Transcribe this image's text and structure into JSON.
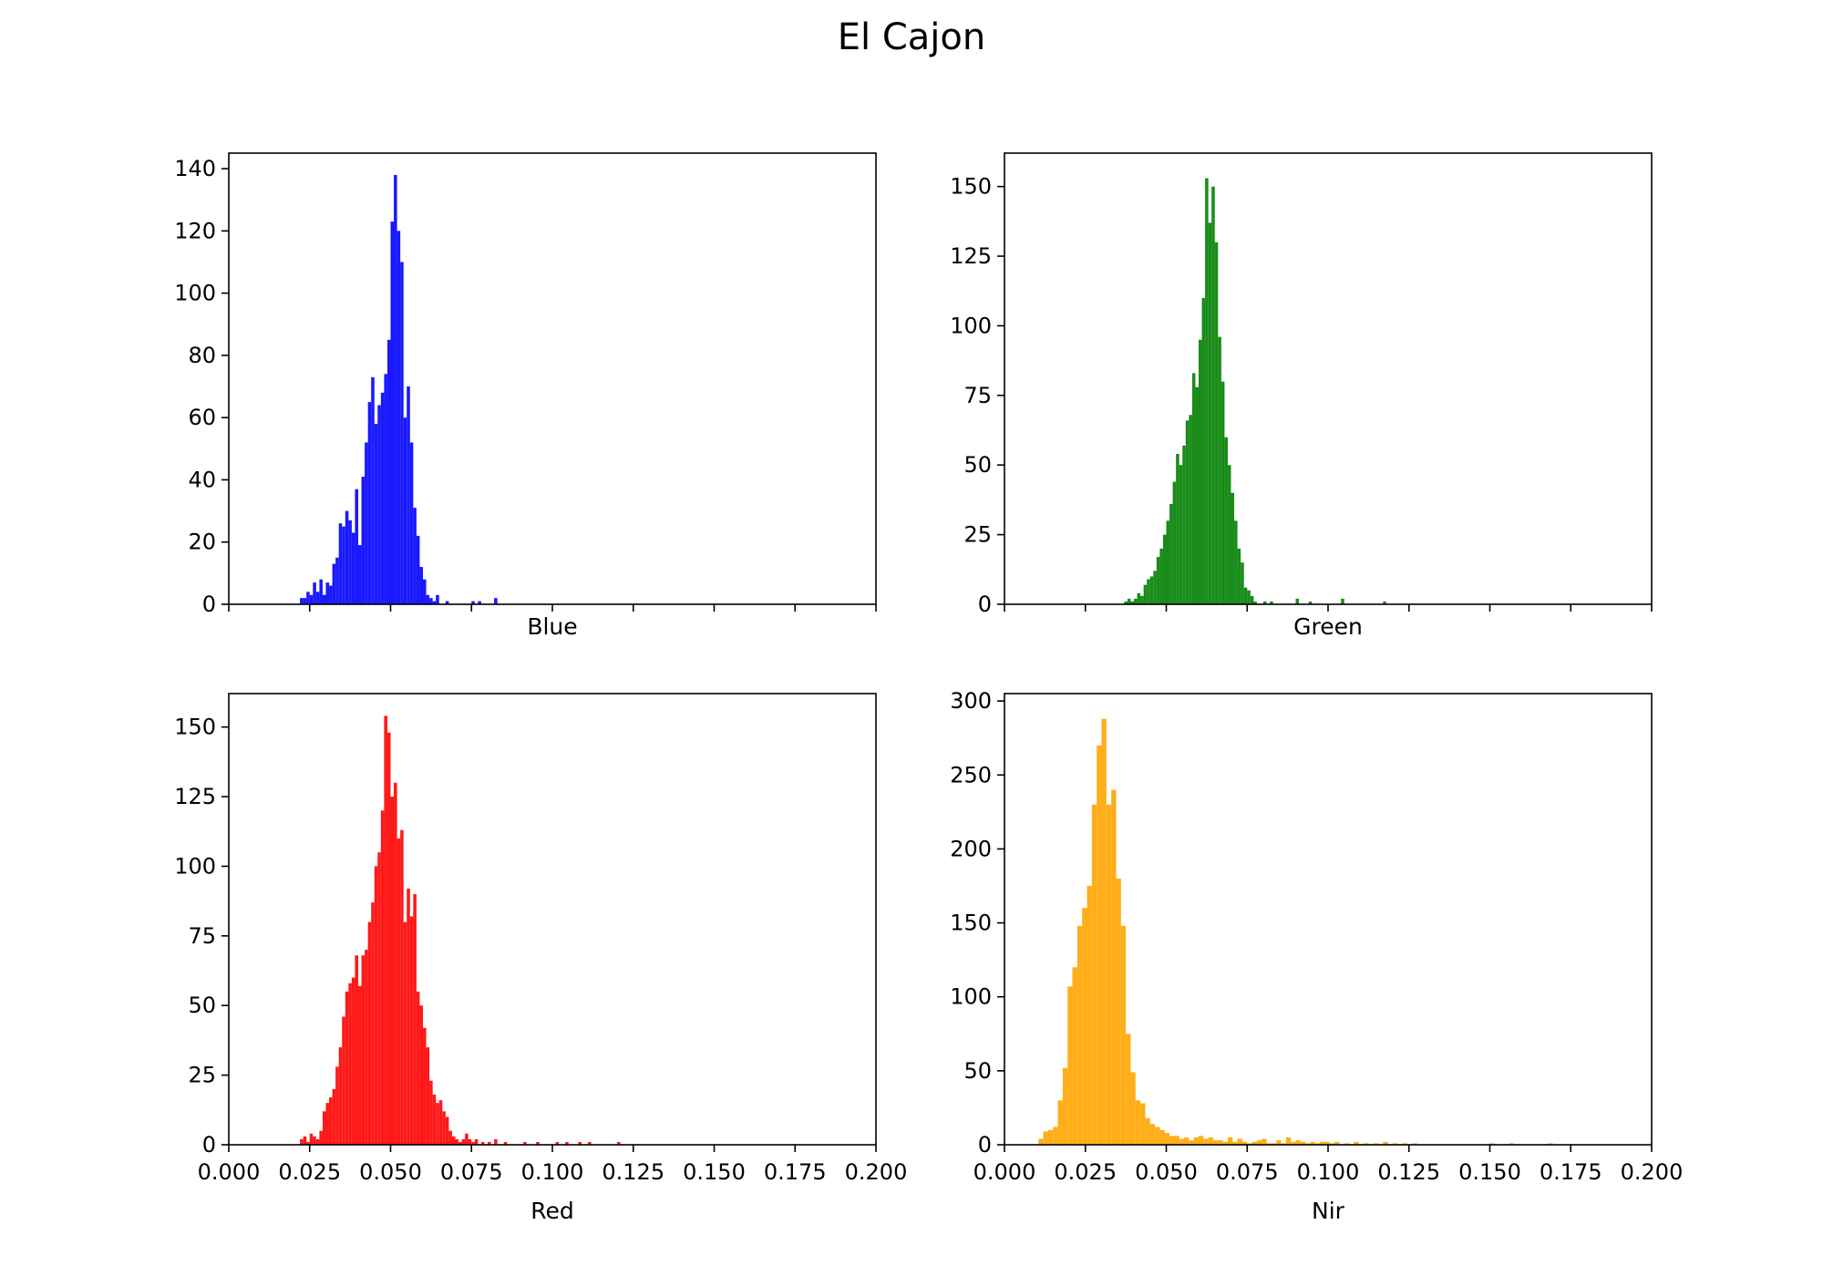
{
  "figure": {
    "title": "El Cajon"
  },
  "chart_data": [
    {
      "type": "bar",
      "name": "blue-histogram",
      "xlabel": "Blue",
      "color": "#0000ff",
      "xlim": [
        0,
        0.2
      ],
      "ylim": [
        0,
        145
      ],
      "yticks": [
        0,
        20,
        40,
        60,
        80,
        100,
        120,
        140
      ],
      "xticks": [
        0,
        0.025,
        0.05,
        0.075,
        0.1,
        0.125,
        0.15,
        0.175,
        0.2
      ],
      "show_xtick_labels": false,
      "bin_width": 0.001,
      "x": [
        0.022,
        0.023,
        0.024,
        0.025,
        0.026,
        0.027,
        0.028,
        0.029,
        0.03,
        0.031,
        0.032,
        0.033,
        0.034,
        0.035,
        0.036,
        0.037,
        0.038,
        0.039,
        0.04,
        0.041,
        0.042,
        0.043,
        0.044,
        0.045,
        0.046,
        0.047,
        0.048,
        0.049,
        0.05,
        0.051,
        0.052,
        0.053,
        0.054,
        0.055,
        0.056,
        0.057,
        0.058,
        0.059,
        0.06,
        0.061,
        0.062,
        0.063,
        0.064,
        0.067,
        0.075,
        0.077,
        0.082
      ],
      "counts": [
        2,
        2,
        4,
        3,
        7,
        4,
        8,
        3,
        7,
        6,
        13,
        15,
        26,
        25,
        30,
        27,
        23,
        37,
        19,
        41,
        52,
        65,
        73,
        58,
        64,
        68,
        74,
        85,
        123,
        138,
        120,
        110,
        60,
        70,
        52,
        31,
        22,
        12,
        8,
        3,
        2,
        1,
        3,
        1,
        1,
        1,
        2
      ]
    },
    {
      "type": "bar",
      "name": "green-histogram",
      "xlabel": "Green",
      "color": "#008000",
      "xlim": [
        0,
        0.2
      ],
      "ylim": [
        0,
        162
      ],
      "yticks": [
        0,
        25,
        50,
        75,
        100,
        125,
        150
      ],
      "xticks": [
        0,
        0.025,
        0.05,
        0.075,
        0.1,
        0.125,
        0.15,
        0.175,
        0.2
      ],
      "show_xtick_labels": false,
      "bin_width": 0.001,
      "x": [
        0.037,
        0.038,
        0.039,
        0.04,
        0.041,
        0.042,
        0.043,
        0.044,
        0.045,
        0.046,
        0.047,
        0.048,
        0.049,
        0.05,
        0.051,
        0.052,
        0.053,
        0.054,
        0.055,
        0.056,
        0.057,
        0.058,
        0.059,
        0.06,
        0.061,
        0.062,
        0.063,
        0.064,
        0.065,
        0.066,
        0.067,
        0.068,
        0.069,
        0.07,
        0.071,
        0.072,
        0.073,
        0.074,
        0.075,
        0.076,
        0.077,
        0.08,
        0.082,
        0.09,
        0.094,
        0.104,
        0.117
      ],
      "counts": [
        1,
        2,
        1,
        2,
        4,
        3,
        7,
        9,
        10,
        12,
        17,
        20,
        25,
        30,
        36,
        44,
        54,
        50,
        57,
        66,
        68,
        83,
        78,
        95,
        110,
        153,
        137,
        150,
        130,
        96,
        80,
        60,
        50,
        40,
        30,
        20,
        15,
        6,
        5,
        3,
        1,
        1,
        1,
        2,
        1,
        2,
        1
      ]
    },
    {
      "type": "bar",
      "name": "red-histogram",
      "xlabel": "Red",
      "color": "#ff0000",
      "xlim": [
        0,
        0.2
      ],
      "ylim": [
        0,
        162
      ],
      "yticks": [
        0,
        25,
        50,
        75,
        100,
        125,
        150
      ],
      "xticks": [
        0,
        0.025,
        0.05,
        0.075,
        0.1,
        0.125,
        0.15,
        0.175,
        0.2
      ],
      "xtick_labels": [
        "0.000",
        "0.025",
        "0.050",
        "0.075",
        "0.100",
        "0.125",
        "0.150",
        "0.175",
        "0.200"
      ],
      "show_xtick_labels": true,
      "bin_width": 0.001,
      "x": [
        0.022,
        0.023,
        0.024,
        0.025,
        0.026,
        0.027,
        0.028,
        0.029,
        0.03,
        0.031,
        0.032,
        0.033,
        0.034,
        0.035,
        0.036,
        0.037,
        0.038,
        0.039,
        0.04,
        0.041,
        0.042,
        0.043,
        0.044,
        0.045,
        0.046,
        0.047,
        0.048,
        0.049,
        0.05,
        0.051,
        0.052,
        0.053,
        0.054,
        0.055,
        0.056,
        0.057,
        0.058,
        0.059,
        0.06,
        0.061,
        0.062,
        0.063,
        0.064,
        0.065,
        0.066,
        0.067,
        0.068,
        0.069,
        0.07,
        0.071,
        0.072,
        0.073,
        0.074,
        0.075,
        0.076,
        0.078,
        0.08,
        0.082,
        0.085,
        0.091,
        0.095,
        0.101,
        0.104,
        0.108,
        0.111,
        0.12
      ],
      "counts": [
        2,
        3,
        1,
        4,
        3,
        2,
        5,
        12,
        15,
        17,
        20,
        28,
        35,
        46,
        55,
        58,
        60,
        68,
        57,
        68,
        70,
        80,
        87,
        100,
        105,
        120,
        154,
        148,
        125,
        130,
        110,
        113,
        80,
        92,
        82,
        90,
        55,
        50,
        42,
        35,
        23,
        18,
        15,
        16,
        12,
        10,
        5,
        3,
        2,
        1,
        2,
        4,
        2,
        1,
        2,
        1,
        1,
        2,
        1,
        1,
        1,
        1,
        1,
        1,
        1,
        1
      ]
    },
    {
      "type": "bar",
      "name": "nir-histogram",
      "xlabel": "Nir",
      "color": "#ffa500",
      "xlim": [
        0,
        0.2
      ],
      "ylim": [
        0,
        305
      ],
      "yticks": [
        0,
        50,
        100,
        150,
        200,
        250,
        300
      ],
      "xticks": [
        0,
        0.025,
        0.05,
        0.075,
        0.1,
        0.125,
        0.15,
        0.175,
        0.2
      ],
      "xtick_labels": [
        "0.000",
        "0.025",
        "0.050",
        "0.075",
        "0.100",
        "0.125",
        "0.150",
        "0.175",
        "0.200"
      ],
      "show_xtick_labels": true,
      "bin_width": 0.0015,
      "x": [
        0.0105,
        0.012,
        0.0135,
        0.015,
        0.0165,
        0.018,
        0.0195,
        0.021,
        0.0225,
        0.024,
        0.0255,
        0.027,
        0.0285,
        0.03,
        0.0315,
        0.033,
        0.0345,
        0.036,
        0.0375,
        0.039,
        0.0405,
        0.042,
        0.0435,
        0.045,
        0.0465,
        0.048,
        0.0495,
        0.051,
        0.0525,
        0.054,
        0.0555,
        0.057,
        0.0585,
        0.06,
        0.0615,
        0.063,
        0.0645,
        0.066,
        0.0675,
        0.069,
        0.0705,
        0.072,
        0.0735,
        0.075,
        0.0765,
        0.078,
        0.0795,
        0.081,
        0.0825,
        0.084,
        0.0855,
        0.087,
        0.0885,
        0.09,
        0.0915,
        0.093,
        0.0945,
        0.096,
        0.0975,
        0.099,
        0.1005,
        0.102,
        0.105,
        0.108,
        0.111,
        0.114,
        0.117,
        0.12,
        0.123,
        0.126,
        0.15,
        0.156,
        0.168
      ],
      "counts": [
        4,
        9,
        10,
        12,
        30,
        52,
        107,
        120,
        148,
        160,
        175,
        230,
        270,
        288,
        230,
        240,
        180,
        148,
        75,
        49,
        30,
        28,
        18,
        14,
        12,
        10,
        8,
        6,
        6,
        4,
        5,
        3,
        5,
        6,
        4,
        5,
        3,
        3,
        2,
        5,
        2,
        4,
        2,
        1,
        2,
        3,
        4,
        1,
        1,
        3,
        1,
        5,
        2,
        3,
        2,
        1,
        2,
        1,
        2,
        2,
        1,
        2,
        1,
        2,
        1,
        1,
        2,
        1,
        1,
        1,
        1,
        1,
        1
      ]
    }
  ]
}
